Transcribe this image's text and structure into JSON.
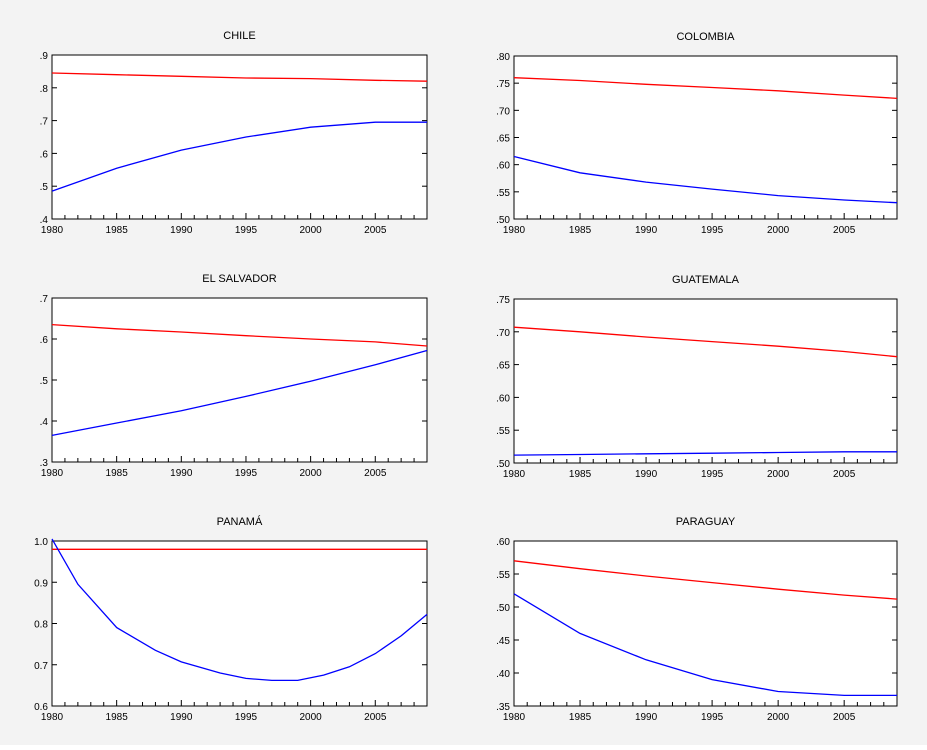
{
  "page": {
    "background": "#f3f3f3",
    "series_colors": {
      "red_line": "#ff0000",
      "blue_line": "#0000ff"
    }
  },
  "chart_data": [
    {
      "type": "line",
      "title": "CHILE",
      "x": [
        1980,
        1985,
        1990,
        1995,
        2000,
        2005,
        2009
      ],
      "xticks": [
        1980,
        1985,
        1990,
        1995,
        2000,
        2005
      ],
      "xlim": [
        1980,
        2009
      ],
      "ylim": [
        0.4,
        0.9
      ],
      "yticks": [
        0.4,
        0.5,
        0.6,
        0.7,
        0.8,
        0.9
      ],
      "ytick_labels": [
        ".4",
        ".5",
        ".6",
        ".7",
        ".8",
        ".9"
      ],
      "series": [
        {
          "color": "#ff0000",
          "values": [
            0.845,
            0.84,
            0.835,
            0.83,
            0.828,
            0.823,
            0.82
          ]
        },
        {
          "color": "#0000ff",
          "values": [
            0.485,
            0.555,
            0.61,
            0.65,
            0.68,
            0.695,
            0.695
          ]
        }
      ]
    },
    {
      "type": "line",
      "title": "COLOMBIA",
      "x": [
        1980,
        1985,
        1990,
        1995,
        2000,
        2005,
        2009
      ],
      "xticks": [
        1980,
        1985,
        1990,
        1995,
        2000,
        2005
      ],
      "xlim": [
        1980,
        2009
      ],
      "ylim": [
        0.5,
        0.8
      ],
      "yticks": [
        0.5,
        0.55,
        0.6,
        0.65,
        0.7,
        0.75,
        0.8
      ],
      "ytick_labels": [
        ".50",
        ".55",
        ".60",
        ".65",
        ".70",
        ".75",
        ".80"
      ],
      "series": [
        {
          "color": "#ff0000",
          "values": [
            0.76,
            0.755,
            0.748,
            0.742,
            0.736,
            0.728,
            0.722
          ]
        },
        {
          "color": "#0000ff",
          "values": [
            0.615,
            0.585,
            0.568,
            0.555,
            0.543,
            0.535,
            0.53
          ]
        }
      ]
    },
    {
      "type": "line",
      "title": "EL SALVADOR",
      "x": [
        1980,
        1985,
        1990,
        1995,
        2000,
        2005,
        2009
      ],
      "xticks": [
        1980,
        1985,
        1990,
        1995,
        2000,
        2005
      ],
      "xlim": [
        1980,
        2009
      ],
      "ylim": [
        0.3,
        0.7
      ],
      "yticks": [
        0.3,
        0.4,
        0.5,
        0.6,
        0.7
      ],
      "ytick_labels": [
        ".3",
        ".4",
        ".5",
        ".6",
        ".7"
      ],
      "series": [
        {
          "color": "#ff0000",
          "values": [
            0.635,
            0.625,
            0.617,
            0.608,
            0.6,
            0.593,
            0.583
          ]
        },
        {
          "color": "#0000ff",
          "values": [
            0.365,
            0.395,
            0.425,
            0.46,
            0.497,
            0.537,
            0.572
          ]
        }
      ]
    },
    {
      "type": "line",
      "title": "GUATEMALA",
      "x": [
        1980,
        1985,
        1990,
        1995,
        2000,
        2005,
        2009
      ],
      "xticks": [
        1980,
        1985,
        1990,
        1995,
        2000,
        2005
      ],
      "xlim": [
        1980,
        2009
      ],
      "ylim": [
        0.5,
        0.75
      ],
      "yticks": [
        0.5,
        0.55,
        0.6,
        0.65,
        0.7,
        0.75
      ],
      "ytick_labels": [
        ".50",
        ".55",
        ".60",
        ".65",
        ".70",
        ".75"
      ],
      "series": [
        {
          "color": "#ff0000",
          "values": [
            0.707,
            0.7,
            0.692,
            0.685,
            0.678,
            0.67,
            0.662
          ]
        },
        {
          "color": "#0000ff",
          "values": [
            0.512,
            0.513,
            0.514,
            0.515,
            0.516,
            0.517,
            0.517
          ]
        }
      ]
    },
    {
      "type": "line",
      "title": "PANAMÁ",
      "x": [
        1980,
        1982,
        1985,
        1988,
        1990,
        1993,
        1995,
        1997,
        1999,
        2001,
        2003,
        2005,
        2007,
        2009
      ],
      "xticks": [
        1980,
        1985,
        1990,
        1995,
        2000,
        2005
      ],
      "xlim": [
        1980,
        2009
      ],
      "ylim": [
        0.6,
        1.0
      ],
      "yticks": [
        0.6,
        0.7,
        0.8,
        0.9,
        1.0
      ],
      "ytick_labels": [
        "0.6",
        "0.7",
        "0.8",
        "0.9",
        "1.0"
      ],
      "series": [
        {
          "color": "#ff0000",
          "values": [
            0.98,
            0.98,
            0.98,
            0.98,
            0.98,
            0.98,
            0.98,
            0.98,
            0.98,
            0.98,
            0.98,
            0.98,
            0.98,
            0.98
          ]
        },
        {
          "color": "#0000ff",
          "values": [
            1.005,
            0.895,
            0.79,
            0.735,
            0.707,
            0.68,
            0.667,
            0.662,
            0.662,
            0.675,
            0.695,
            0.727,
            0.77,
            0.822
          ]
        }
      ]
    },
    {
      "type": "line",
      "title": "PARAGUAY",
      "x": [
        1980,
        1985,
        1990,
        1995,
        2000,
        2005,
        2009
      ],
      "xticks": [
        1980,
        1985,
        1990,
        1995,
        2000,
        2005
      ],
      "xlim": [
        1980,
        2009
      ],
      "ylim": [
        0.35,
        0.6
      ],
      "yticks": [
        0.35,
        0.4,
        0.45,
        0.5,
        0.55,
        0.6
      ],
      "ytick_labels": [
        ".35",
        ".40",
        ".45",
        ".50",
        ".55",
        ".60"
      ],
      "series": [
        {
          "color": "#ff0000",
          "values": [
            0.57,
            0.558,
            0.547,
            0.537,
            0.527,
            0.518,
            0.512
          ]
        },
        {
          "color": "#0000ff",
          "values": [
            0.52,
            0.46,
            0.42,
            0.39,
            0.372,
            0.366,
            0.366
          ]
        }
      ]
    }
  ]
}
